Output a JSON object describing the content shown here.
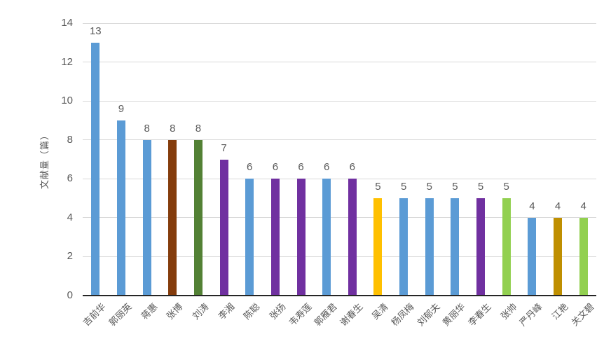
{
  "chart_data": {
    "type": "bar",
    "title": "",
    "ylabel": "文献量（篇）",
    "xlabel": "",
    "categories": [
      "吉前华",
      "郭丽英",
      "蒋惠",
      "张博",
      "刘涛",
      "李湘",
      "陈聪",
      "张扬",
      "韦寿莲",
      "郭雁君",
      "谢春生",
      "吴清",
      "杨凤梅",
      "刘郁夫",
      "黄丽华",
      "李春生",
      "张帅",
      "严丹峰",
      "江艳",
      "关文碧"
    ],
    "values": [
      13,
      9,
      8,
      8,
      8,
      7,
      6,
      6,
      6,
      6,
      6,
      5,
      5,
      5,
      5,
      5,
      5,
      4,
      4,
      4
    ],
    "bar_colors": [
      "#5B9BD5",
      "#5B9BD5",
      "#5B9BD5",
      "#843C0C",
      "#538135",
      "#7030A0",
      "#5B9BD5",
      "#7030A0",
      "#7030A0",
      "#5B9BD5",
      "#7030A0",
      "#FFC000",
      "#5B9BD5",
      "#5B9BD5",
      "#5B9BD5",
      "#7030A0",
      "#92D050",
      "#5B9BD5",
      "#BF8F00",
      "#92D050"
    ],
    "ylim": [
      0,
      14
    ],
    "yticks": [
      0,
      2,
      4,
      6,
      8,
      10,
      12,
      14
    ],
    "grid": true,
    "legend_position": "none",
    "data_labels": true,
    "palette": {
      "blue": "#5B9BD5",
      "brown": "#843C0C",
      "dark_green": "#538135",
      "purple": "#7030A0",
      "yellow": "#FFC000",
      "gold": "#BF8F00",
      "light_green": "#92D050"
    },
    "text_color": "#595959",
    "gridline_color": "#D9D9D9",
    "axis_line_color": "#262626",
    "background_color": "#FFFFFF"
  }
}
